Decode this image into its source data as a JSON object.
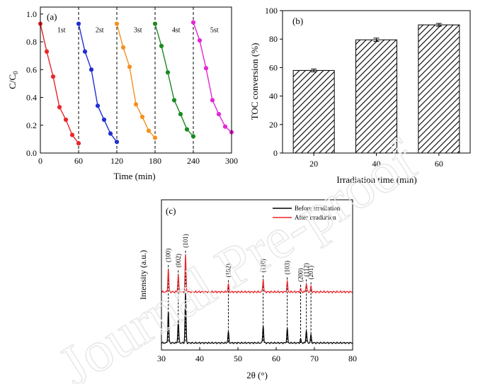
{
  "watermark": {
    "text": "Journal Pre-proof"
  },
  "chart_data": [
    {
      "panel_label": "(a)",
      "type": "line",
      "xlabel": "Time (min)",
      "ylabel": "C/C0",
      "xlim": [
        0,
        300
      ],
      "ylim": [
        0,
        1.05
      ],
      "xticks": [
        0,
        60,
        120,
        180,
        240,
        300
      ],
      "yticks": [
        0.0,
        0.2,
        0.4,
        0.6,
        0.8,
        1.0
      ],
      "xtick_labels": [
        "0",
        "60",
        "120",
        "180",
        "240",
        "300"
      ],
      "ytick_labels": [
        "0.0",
        "0.2",
        "0.4",
        "0.6",
        "0.8",
        "1.0"
      ],
      "cycle_dividers": [
        60,
        120,
        180,
        240
      ],
      "series": [
        {
          "name": "1st",
          "color": "#e8262b",
          "x": [
            0,
            10,
            20,
            30,
            40,
            50,
            60
          ],
          "y": [
            0.93,
            0.73,
            0.55,
            0.33,
            0.24,
            0.13,
            0.07
          ]
        },
        {
          "name": "2st",
          "color": "#1f2fd1",
          "x": [
            60,
            70,
            80,
            90,
            100,
            110,
            120
          ],
          "y": [
            0.93,
            0.73,
            0.6,
            0.34,
            0.24,
            0.14,
            0.08
          ]
        },
        {
          "name": "3st",
          "color": "#f5901e",
          "x": [
            120,
            130,
            140,
            150,
            160,
            170,
            180
          ],
          "y": [
            0.93,
            0.76,
            0.62,
            0.35,
            0.26,
            0.16,
            0.11
          ]
        },
        {
          "name": "4st",
          "color": "#1b8a22",
          "x": [
            180,
            190,
            200,
            210,
            220,
            230,
            240
          ],
          "y": [
            0.93,
            0.77,
            0.58,
            0.38,
            0.28,
            0.17,
            0.12
          ]
        },
        {
          "name": "5st",
          "color": "#e426d5",
          "x": [
            240,
            250,
            260,
            270,
            280,
            290,
            300
          ],
          "y": [
            0.94,
            0.81,
            0.61,
            0.38,
            0.28,
            0.19,
            0.15
          ]
        }
      ]
    },
    {
      "panel_label": "(b)",
      "type": "bar",
      "xlabel": "Irradiation time (min)",
      "ylabel": "TOC conversion (%)",
      "categories": [
        "20",
        "40",
        "60"
      ],
      "values": [
        58,
        79.5,
        90
      ],
      "errors": [
        1,
        1.2,
        1
      ],
      "ylim": [
        0,
        100
      ],
      "yticks": [
        0,
        20,
        40,
        60,
        80,
        100
      ],
      "ytick_labels": [
        "0",
        "20",
        "40",
        "60",
        "80",
        "100"
      ],
      "bar_fill": "hatched"
    },
    {
      "panel_label": "(c)",
      "type": "line",
      "xlabel": "2θ (°)",
      "ylabel": "Intensity (a.u.)",
      "xlim": [
        30,
        80
      ],
      "xticks": [
        30,
        40,
        50,
        60,
        70,
        80
      ],
      "xtick_labels": [
        "30",
        "40",
        "50",
        "60",
        "70",
        "80"
      ],
      "legend_position": "top-right",
      "peaks": [
        {
          "label": "(100)",
          "x": 31.8,
          "h_before": 1.0,
          "h_after": 0.55
        },
        {
          "label": "(002)",
          "x": 34.4,
          "h_before": 0.7,
          "h_after": 0.42
        },
        {
          "label": "(101)",
          "x": 36.3,
          "h_before": 1.6,
          "h_after": 0.9
        },
        {
          "label": "(102)",
          "x": 47.5,
          "h_before": 0.35,
          "h_after": 0.18
        },
        {
          "label": "(110)",
          "x": 56.6,
          "h_before": 0.55,
          "h_after": 0.3
        },
        {
          "label": "(103)",
          "x": 62.9,
          "h_before": 0.45,
          "h_after": 0.25
        },
        {
          "label": "(200)",
          "x": 66.4,
          "h_before": 0.12,
          "h_after": 0.07
        },
        {
          "label": "(112)",
          "x": 67.9,
          "h_before": 0.4,
          "h_after": 0.2
        },
        {
          "label": "(201)",
          "x": 69.1,
          "h_before": 0.25,
          "h_after": 0.13
        }
      ],
      "series": [
        {
          "name": "Before irradiation",
          "color": "#000000"
        },
        {
          "name": "After irradiation",
          "color": "#e8262b"
        }
      ]
    }
  ]
}
